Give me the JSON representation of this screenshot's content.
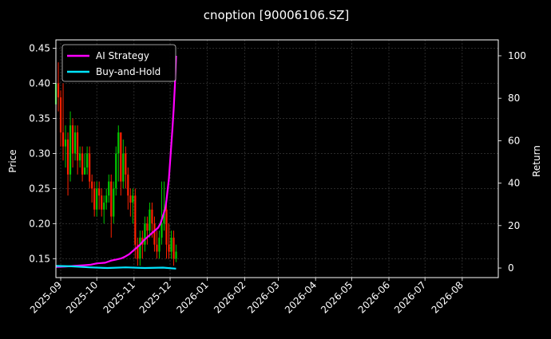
{
  "chart_data": {
    "type": "line",
    "title": "cnoption [90006106.SZ]",
    "ylabel_left": "Price",
    "ylabel_right": "Return",
    "xlabel": "",
    "grid": true,
    "legend_position": "top-left",
    "x_range": [
      "2025-08-28",
      "2026-08-31"
    ],
    "y_left_range": [
      0.123,
      0.462
    ],
    "y_right_range": [
      -4.5,
      107.5
    ],
    "x_ticks": [
      "2025-09",
      "2025-10",
      "2025-11",
      "2025-12",
      "2026-01",
      "2026-02",
      "2026-03",
      "2026-04",
      "2026-05",
      "2026-06",
      "2026-07",
      "2026-08"
    ],
    "y_left_ticks": [
      "0.15",
      "0.20",
      "0.25",
      "0.30",
      "0.35",
      "0.40",
      "0.45"
    ],
    "y_right_ticks": [
      "0",
      "20",
      "40",
      "60",
      "80",
      "100"
    ],
    "colors": {
      "up": "#00c800",
      "down": "#ff2000",
      "strategy": "#ff00ff",
      "buyhold": "#00e5ff",
      "grid": "#444444"
    },
    "series": [
      {
        "name": "AI Strategy",
        "axis": "right",
        "color": "#ff00ff",
        "points": [
          [
            "2025-08-28",
            0.5
          ],
          [
            "2025-09-05",
            0.7
          ],
          [
            "2025-09-12",
            1.0
          ],
          [
            "2025-09-20",
            1.3
          ],
          [
            "2025-09-26",
            1.6
          ],
          [
            "2025-10-01",
            2.2
          ],
          [
            "2025-10-08",
            2.5
          ],
          [
            "2025-10-13",
            3.5
          ],
          [
            "2025-10-17",
            4.0
          ],
          [
            "2025-10-21",
            4.5
          ],
          [
            "2025-10-24",
            5.2
          ],
          [
            "2025-10-28",
            6.5
          ],
          [
            "2025-10-31",
            8.0
          ],
          [
            "2025-11-03",
            9.5
          ],
          [
            "2025-11-06",
            11.0
          ],
          [
            "2025-11-09",
            13.0
          ],
          [
            "2025-11-12",
            14.5
          ],
          [
            "2025-11-15",
            16.0
          ],
          [
            "2025-11-18",
            17.5
          ],
          [
            "2025-11-21",
            19.0
          ],
          [
            "2025-11-23",
            21.0
          ],
          [
            "2025-11-25",
            24.5
          ],
          [
            "2025-11-27",
            28.0
          ],
          [
            "2025-11-28",
            32.0
          ],
          [
            "2025-11-29",
            37.0
          ],
          [
            "2025-11-30",
            42.0
          ],
          [
            "2025-12-01",
            50.0
          ],
          [
            "2025-12-02",
            58.0
          ],
          [
            "2025-12-03",
            66.0
          ],
          [
            "2025-12-04",
            75.0
          ],
          [
            "2025-12-05",
            86.0
          ],
          [
            "2025-12-06",
            100.0
          ]
        ]
      },
      {
        "name": "Buy-and-Hold",
        "axis": "right",
        "color": "#00e5ff",
        "points": [
          [
            "2025-08-28",
            1.0
          ],
          [
            "2025-09-10",
            0.8
          ],
          [
            "2025-09-25",
            0.3
          ],
          [
            "2025-10-10",
            0.0
          ],
          [
            "2025-10-25",
            0.3
          ],
          [
            "2025-11-10",
            0.0
          ],
          [
            "2025-11-25",
            0.2
          ],
          [
            "2025-12-06",
            -0.3
          ]
        ]
      }
    ],
    "candles_note": "price candles on left axis",
    "candles": [
      [
        "2025-08-28",
        0.37,
        0.4,
        0.35,
        0.42
      ],
      [
        "2025-08-30",
        0.4,
        0.38,
        0.36,
        0.43
      ],
      [
        "2025-09-01",
        0.38,
        0.33,
        0.31,
        0.39
      ],
      [
        "2025-09-03",
        0.33,
        0.31,
        0.29,
        0.4
      ],
      [
        "2025-09-05",
        0.31,
        0.32,
        0.28,
        0.34
      ],
      [
        "2025-09-07",
        0.32,
        0.27,
        0.24,
        0.33
      ],
      [
        "2025-09-09",
        0.27,
        0.34,
        0.26,
        0.36
      ],
      [
        "2025-09-11",
        0.34,
        0.3,
        0.28,
        0.35
      ],
      [
        "2025-09-13",
        0.3,
        0.33,
        0.29,
        0.34
      ],
      [
        "2025-09-15",
        0.33,
        0.29,
        0.27,
        0.34
      ],
      [
        "2025-09-17",
        0.29,
        0.3,
        0.28,
        0.31
      ],
      [
        "2025-09-19",
        0.3,
        0.27,
        0.26,
        0.31
      ],
      [
        "2025-09-21",
        0.27,
        0.28,
        0.27,
        0.3
      ],
      [
        "2025-09-23",
        0.28,
        0.3,
        0.27,
        0.31
      ],
      [
        "2025-09-25",
        0.3,
        0.26,
        0.25,
        0.31
      ],
      [
        "2025-09-27",
        0.26,
        0.25,
        0.23,
        0.27
      ],
      [
        "2025-09-29",
        0.25,
        0.22,
        0.21,
        0.26
      ],
      [
        "2025-10-01",
        0.22,
        0.25,
        0.21,
        0.26
      ],
      [
        "2025-10-03",
        0.25,
        0.24,
        0.22,
        0.26
      ],
      [
        "2025-10-05",
        0.24,
        0.22,
        0.21,
        0.25
      ],
      [
        "2025-10-07",
        0.22,
        0.23,
        0.2,
        0.24
      ],
      [
        "2025-10-09",
        0.23,
        0.24,
        0.22,
        0.25
      ],
      [
        "2025-10-11",
        0.24,
        0.26,
        0.23,
        0.27
      ],
      [
        "2025-10-13",
        0.26,
        0.21,
        0.18,
        0.27
      ],
      [
        "2025-10-15",
        0.21,
        0.25,
        0.2,
        0.26
      ],
      [
        "2025-10-17",
        0.25,
        0.3,
        0.24,
        0.31
      ],
      [
        "2025-10-19",
        0.3,
        0.33,
        0.26,
        0.34
      ],
      [
        "2025-10-21",
        0.33,
        0.26,
        0.24,
        0.33
      ],
      [
        "2025-10-23",
        0.26,
        0.3,
        0.25,
        0.32
      ],
      [
        "2025-10-25",
        0.3,
        0.27,
        0.25,
        0.31
      ],
      [
        "2025-10-27",
        0.27,
        0.24,
        0.22,
        0.28
      ],
      [
        "2025-10-29",
        0.24,
        0.23,
        0.21,
        0.25
      ],
      [
        "2025-10-31",
        0.23,
        0.24,
        0.2,
        0.25
      ],
      [
        "2025-11-02",
        0.24,
        0.17,
        0.15,
        0.25
      ],
      [
        "2025-11-04",
        0.17,
        0.15,
        0.14,
        0.18
      ],
      [
        "2025-11-06",
        0.15,
        0.18,
        0.14,
        0.19
      ],
      [
        "2025-11-08",
        0.18,
        0.17,
        0.15,
        0.19
      ],
      [
        "2025-11-10",
        0.17,
        0.2,
        0.16,
        0.21
      ],
      [
        "2025-11-12",
        0.2,
        0.19,
        0.17,
        0.21
      ],
      [
        "2025-11-14",
        0.19,
        0.22,
        0.18,
        0.23
      ],
      [
        "2025-11-16",
        0.22,
        0.2,
        0.18,
        0.23
      ],
      [
        "2025-11-18",
        0.2,
        0.17,
        0.16,
        0.21
      ],
      [
        "2025-11-20",
        0.17,
        0.16,
        0.15,
        0.19
      ],
      [
        "2025-11-22",
        0.16,
        0.18,
        0.15,
        0.19
      ],
      [
        "2025-11-24",
        0.18,
        0.2,
        0.17,
        0.26
      ],
      [
        "2025-11-26",
        0.2,
        0.22,
        0.19,
        0.26
      ],
      [
        "2025-11-28",
        0.22,
        0.17,
        0.15,
        0.23
      ],
      [
        "2025-11-30",
        0.17,
        0.16,
        0.15,
        0.2
      ],
      [
        "2025-12-02",
        0.16,
        0.18,
        0.15,
        0.19
      ],
      [
        "2025-12-04",
        0.18,
        0.15,
        0.14,
        0.19
      ],
      [
        "2025-12-06",
        0.15,
        0.16,
        0.145,
        0.17
      ]
    ]
  }
}
